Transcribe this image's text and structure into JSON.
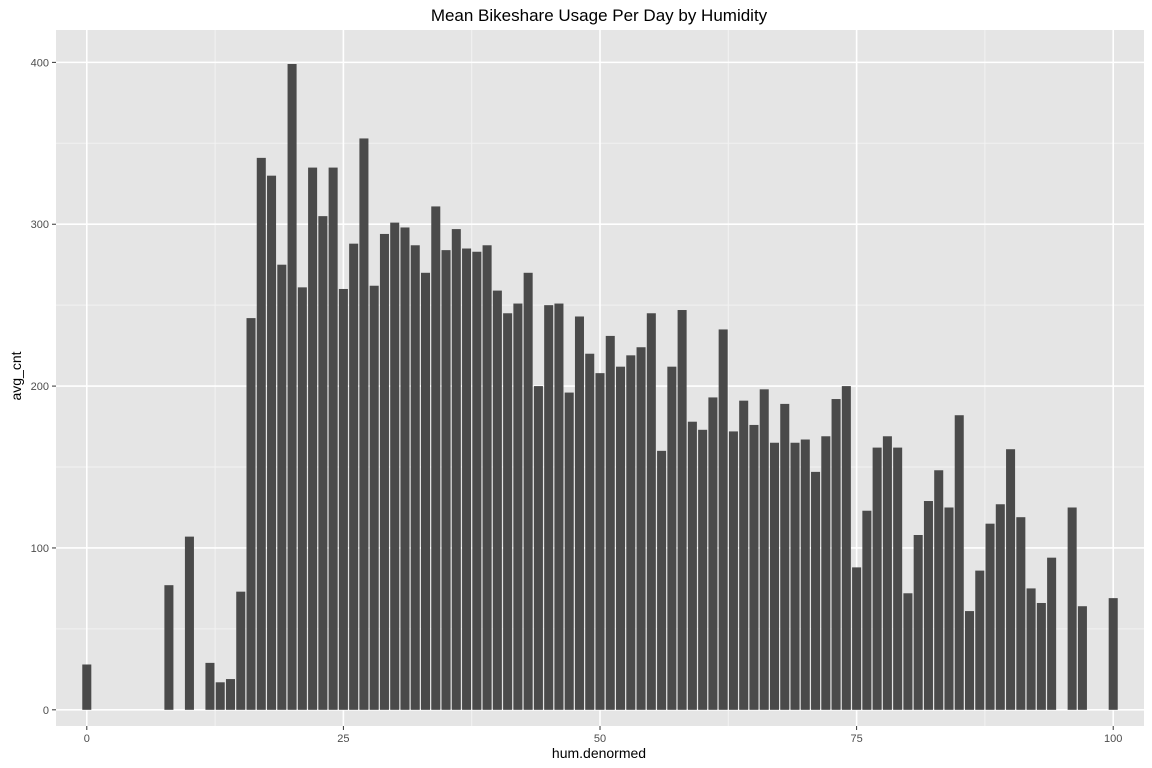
{
  "chart_data": {
    "type": "bar",
    "title": "Mean Bikeshare Usage Per Day by Humidity",
    "xlabel": "hum.denormed",
    "ylabel": "avg_cnt",
    "xlim": [
      -3,
      103
    ],
    "ylim": [
      -10,
      420
    ],
    "x_ticks": [
      0,
      25,
      50,
      75,
      100
    ],
    "x_tick_labels": [
      "0",
      "25",
      "50",
      "75",
      "100"
    ],
    "y_ticks": [
      0,
      100,
      200,
      300,
      400
    ],
    "y_tick_labels": [
      "0",
      "100",
      "200",
      "300",
      "400"
    ],
    "grid": true,
    "legend": "none",
    "colors": {
      "panel": "#e5e5e5",
      "grid_major": "#ffffff",
      "grid_minor": "#f2f2f2",
      "bar": "#4a4a4a"
    },
    "x": [
      0,
      8,
      10,
      12,
      13,
      14,
      15,
      16,
      17,
      18,
      19,
      20,
      21,
      22,
      23,
      24,
      25,
      26,
      27,
      28,
      29,
      30,
      31,
      32,
      33,
      34,
      35,
      36,
      37,
      38,
      39,
      40,
      41,
      42,
      43,
      44,
      45,
      46,
      47,
      48,
      49,
      50,
      51,
      52,
      53,
      54,
      55,
      56,
      57,
      58,
      59,
      60,
      61,
      62,
      63,
      64,
      65,
      66,
      67,
      68,
      69,
      70,
      71,
      72,
      73,
      74,
      75,
      76,
      77,
      78,
      79,
      80,
      81,
      82,
      83,
      84,
      85,
      86,
      87,
      88,
      89,
      90,
      91,
      92,
      93,
      94,
      96,
      97,
      100
    ],
    "values": [
      28,
      77,
      107,
      29,
      17,
      19,
      73,
      242,
      341,
      330,
      275,
      399,
      261,
      335,
      305,
      335,
      260,
      288,
      353,
      262,
      294,
      301,
      298,
      287,
      270,
      311,
      284,
      297,
      285,
      283,
      287,
      259,
      245,
      251,
      270,
      200,
      250,
      251,
      196,
      243,
      220,
      208,
      231,
      212,
      219,
      224,
      245,
      160,
      212,
      247,
      178,
      173,
      193,
      235,
      172,
      191,
      176,
      198,
      165,
      189,
      165,
      167,
      147,
      169,
      192,
      200,
      88,
      123,
      162,
      169,
      162,
      72,
      108,
      129,
      148,
      125,
      182,
      61,
      86,
      115,
      127,
      161,
      119,
      75,
      66,
      94,
      125,
      64,
      69
    ]
  }
}
